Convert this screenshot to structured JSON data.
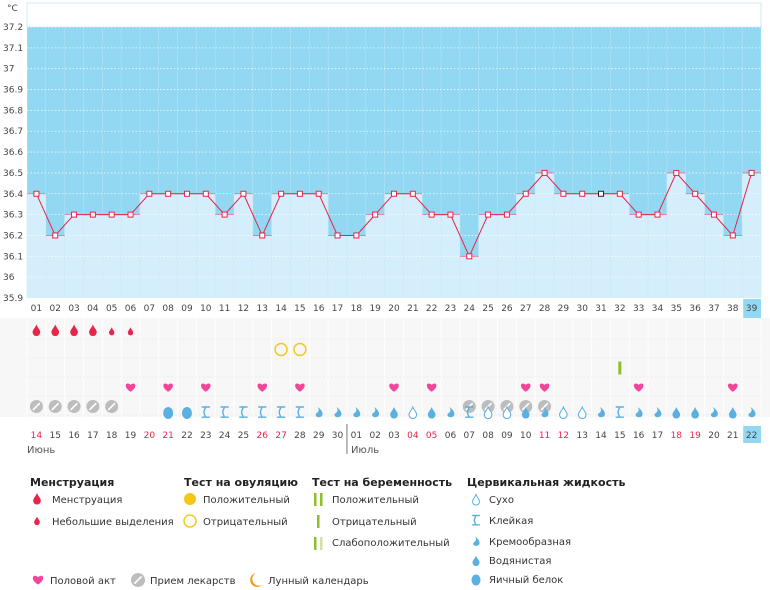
{
  "chart_data": {
    "type": "line",
    "unit": "°C",
    "ylim": [
      35.9,
      37.2
    ],
    "yticks": [
      35.9,
      36,
      36.1,
      36.2,
      36.3,
      36.4,
      36.5,
      36.6,
      36.7,
      36.8,
      36.9,
      37,
      37.1,
      37.2
    ],
    "cycle_days": [
      "01",
      "02",
      "03",
      "04",
      "05",
      "06",
      "07",
      "08",
      "09",
      "10",
      "11",
      "12",
      "13",
      "14",
      "15",
      "16",
      "17",
      "18",
      "19",
      "20",
      "21",
      "22",
      "23",
      "24",
      "25",
      "26",
      "27",
      "28",
      "29",
      "30",
      "31",
      "32",
      "33",
      "34",
      "35",
      "36",
      "37",
      "38",
      "39"
    ],
    "temperatures": [
      36.4,
      36.2,
      36.3,
      36.3,
      36.3,
      36.3,
      36.4,
      36.4,
      36.4,
      36.4,
      36.3,
      36.4,
      36.2,
      36.4,
      36.4,
      36.4,
      36.2,
      36.2,
      36.3,
      36.4,
      36.4,
      36.3,
      36.3,
      36.1,
      36.3,
      36.3,
      36.4,
      36.5,
      36.4,
      36.4,
      36.4,
      36.4,
      36.3,
      36.3,
      36.5,
      36.4,
      36.3,
      36.2,
      36.5
    ],
    "selected_index": 30,
    "today_index": 38,
    "calendar_dates": [
      "14",
      "15",
      "16",
      "17",
      "18",
      "19",
      "20",
      "21",
      "22",
      "23",
      "24",
      "25",
      "26",
      "27",
      "28",
      "29",
      "30",
      "01",
      "02",
      "03",
      "04",
      "05",
      "06",
      "07",
      "08",
      "09",
      "10",
      "11",
      "12",
      "13",
      "14",
      "15",
      "16",
      "17",
      "18",
      "19",
      "20",
      "21",
      "22"
    ],
    "weekend_flags": [
      1,
      0,
      0,
      0,
      0,
      0,
      1,
      1,
      0,
      0,
      0,
      0,
      1,
      1,
      0,
      0,
      0,
      0,
      0,
      0,
      1,
      1,
      0,
      0,
      0,
      0,
      0,
      1,
      1,
      0,
      0,
      0,
      0,
      0,
      1,
      1,
      0,
      0,
      0
    ],
    "months": [
      {
        "label": "Июнь",
        "start_index": 0
      },
      {
        "label": "Июль",
        "start_index": 17
      }
    ],
    "menstruation": [
      "heavy",
      "heavy",
      "heavy",
      "heavy",
      "light",
      "light"
    ],
    "ovulation_test_negative": [
      13,
      14
    ],
    "pregnancy_test_negative": [
      31
    ],
    "intercourse": [
      5,
      7,
      9,
      12,
      14,
      19,
      21,
      26,
      27,
      32,
      37
    ],
    "medication": [
      0,
      1,
      2,
      3,
      4,
      23,
      24,
      25,
      26,
      27
    ],
    "cervical_fluid": [
      "",
      "",
      "",
      "",
      "",
      "",
      "",
      "eggwhite",
      "eggwhite",
      "sticky",
      "sticky",
      "sticky",
      "sticky",
      "sticky",
      "sticky",
      "creamy",
      "creamy",
      "creamy",
      "creamy",
      "watery",
      "dry",
      "watery",
      "creamy",
      "sticky",
      "dry",
      "dry",
      "watery",
      "creamy",
      "dry",
      "dry",
      "creamy",
      "sticky",
      "creamy",
      "creamy",
      "watery",
      "watery",
      "creamy",
      "watery",
      "creamy"
    ]
  },
  "colors": {
    "band": "#92d8f3",
    "bar": "#d4eefb",
    "line": "#e8244a",
    "red_text": "#e8244a",
    "drop_blue": "#5ab0e0",
    "heart": "#f0479a",
    "ovulation_yellow": "#f5c518",
    "pregnancy_green": "#8cbf2a",
    "pill_gray": "#bdbdbd",
    "moon_orange": "#f29a12",
    "today_highlight": "#92d8f3"
  },
  "legend": {
    "menstruation": {
      "title": "Менструация",
      "items": [
        "Менструация",
        "Небольшие выделения"
      ]
    },
    "ovulation": {
      "title": "Тест на овуляцию",
      "items": [
        "Положительный",
        "Отрицательный"
      ]
    },
    "pregnancy": {
      "title": "Тест на беременность",
      "items": [
        "Положительный",
        "Отрицательный",
        "Слабоположительный"
      ]
    },
    "cervical": {
      "title": "Цервикальная жидкость",
      "items": [
        "Сухо",
        "Клейкая",
        "Кремообразная",
        "Водянистая",
        "Яичный белок"
      ]
    },
    "bottom": [
      "Половой акт",
      "Прием лекарств",
      "Лунный календарь"
    ]
  }
}
